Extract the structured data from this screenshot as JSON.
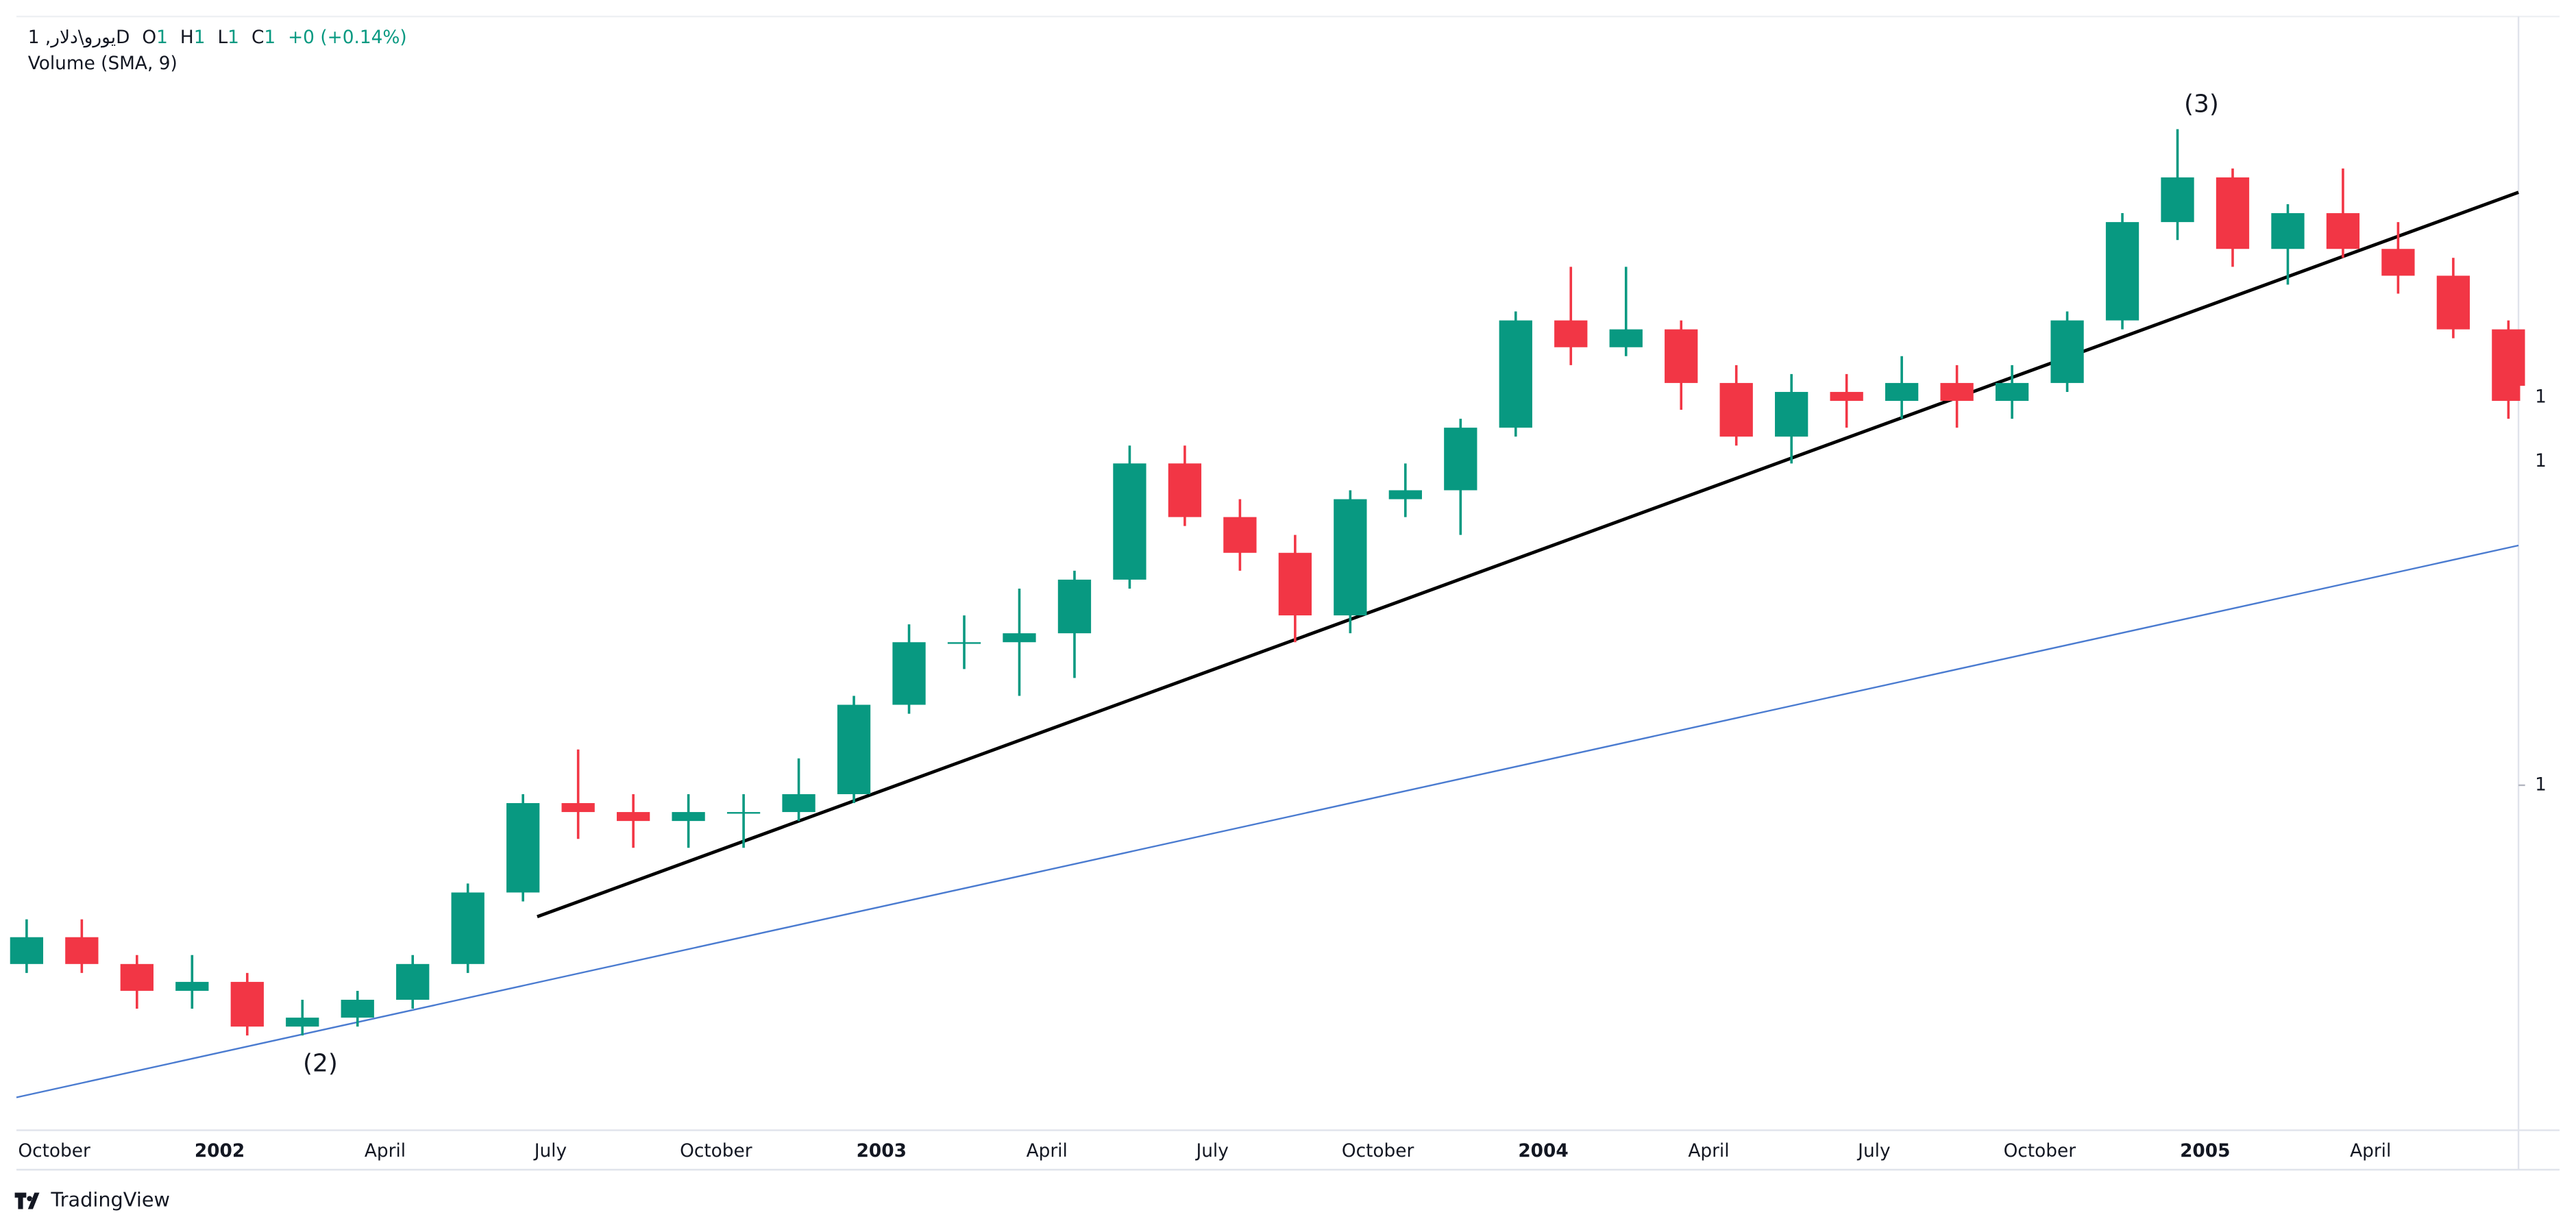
{
  "header": {
    "symbol": "یورو\\دلار, 1D",
    "ohlc": [
      {
        "label": "O",
        "value": "1"
      },
      {
        "label": "H",
        "value": "1"
      },
      {
        "label": "L",
        "value": "1"
      },
      {
        "label": "C",
        "value": "1"
      }
    ],
    "change": "+0 (+0.14%)",
    "indicator": "Volume (SMA, 9)"
  },
  "chart_data": {
    "type": "candlestick",
    "categories": [
      null,
      "October",
      null,
      null,
      "2002",
      null,
      null,
      "April",
      null,
      null,
      "July",
      null,
      null,
      "October",
      null,
      null,
      "2003",
      null,
      null,
      "April",
      null,
      null,
      "July",
      null,
      null,
      "October",
      null,
      null,
      "2004",
      null,
      null,
      "April",
      null,
      null,
      "July",
      null,
      null,
      "October",
      null,
      null,
      "2005",
      null,
      null,
      "April",
      null,
      null
    ],
    "open": [
      0.9,
      0.915,
      0.9,
      0.885,
      0.89,
      0.865,
      0.87,
      0.88,
      0.9,
      0.94,
      0.99,
      0.985,
      0.98,
      0.985,
      0.985,
      0.995,
      1.045,
      1.08,
      1.08,
      1.085,
      1.115,
      1.18,
      1.15,
      1.13,
      1.095,
      1.16,
      1.165,
      1.2,
      1.26,
      1.245,
      1.255,
      1.225,
      1.195,
      1.22,
      1.215,
      1.225,
      1.215,
      1.225,
      1.26,
      1.315,
      1.34,
      1.3,
      1.32,
      1.3,
      1.285,
      1.255
    ],
    "high": [
      0.925,
      0.925,
      0.905,
      0.905,
      0.895,
      0.88,
      0.885,
      0.905,
      0.945,
      0.995,
      1.02,
      0.995,
      0.995,
      0.995,
      1.015,
      1.05,
      1.09,
      1.095,
      1.11,
      1.12,
      1.19,
      1.19,
      1.16,
      1.14,
      1.165,
      1.18,
      1.205,
      1.265,
      1.29,
      1.29,
      1.26,
      1.235,
      1.23,
      1.23,
      1.24,
      1.235,
      1.235,
      1.265,
      1.32,
      1.367,
      1.345,
      1.325,
      1.345,
      1.315,
      1.295,
      1.26
    ],
    "low": [
      0.895,
      0.895,
      0.875,
      0.875,
      0.86,
      0.86,
      0.865,
      0.875,
      0.895,
      0.935,
      0.97,
      0.965,
      0.965,
      0.965,
      0.98,
      0.99,
      1.04,
      1.065,
      1.05,
      1.06,
      1.11,
      1.145,
      1.12,
      1.08,
      1.085,
      1.15,
      1.14,
      1.195,
      1.235,
      1.24,
      1.21,
      1.19,
      1.18,
      1.2,
      1.205,
      1.2,
      1.205,
      1.22,
      1.255,
      1.305,
      1.29,
      1.28,
      1.295,
      1.275,
      1.25,
      1.205
    ],
    "close": [
      0.915,
      0.9,
      0.885,
      0.89,
      0.865,
      0.87,
      0.88,
      0.9,
      0.94,
      0.99,
      0.985,
      0.98,
      0.985,
      0.985,
      0.995,
      1.045,
      1.08,
      1.08,
      1.085,
      1.115,
      1.18,
      1.15,
      1.13,
      1.095,
      1.16,
      1.165,
      1.2,
      1.26,
      1.245,
      1.255,
      1.225,
      1.195,
      1.22,
      1.215,
      1.225,
      1.215,
      1.225,
      1.26,
      1.315,
      1.34,
      1.3,
      1.32,
      1.3,
      1.285,
      1.255,
      1.215
    ],
    "up_color": "#089981",
    "down_color": "#f23645",
    "ylim": [
      0.807,
      1.43
    ],
    "yticks": [
      1
    ],
    "price_labels": [
      {
        "value": 1.217,
        "label": "1"
      },
      {
        "value": 1.181,
        "label": "1"
      }
    ],
    "annotations": [
      "(2)",
      "(3)"
    ]
  },
  "footer": {
    "brand": "TradingView"
  }
}
